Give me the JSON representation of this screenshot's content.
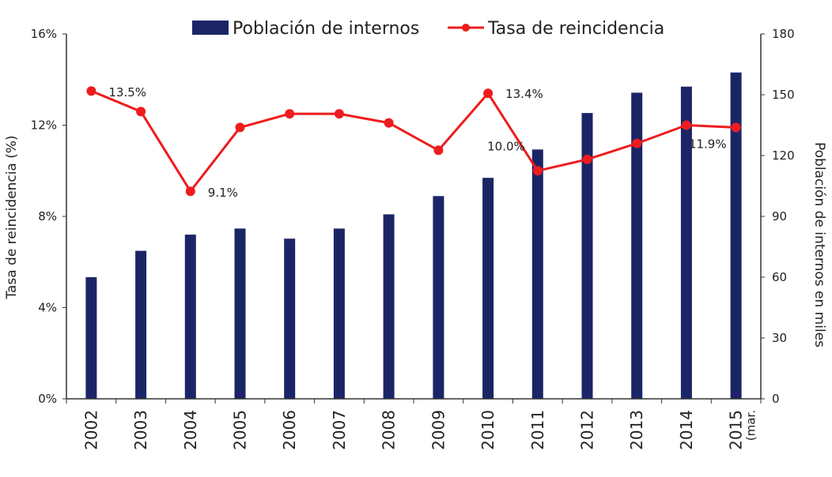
{
  "chart_data": {
    "type": "bar",
    "categories": [
      "2002",
      "2003",
      "2004",
      "2005",
      "2006",
      "2007",
      "2008",
      "2009",
      "2010",
      "2011",
      "2012",
      "2013",
      "2014",
      "2015"
    ],
    "category_sublabels": {
      "2015": "(mar."
    },
    "series": [
      {
        "name": "Población de internos",
        "kind": "bar",
        "axis": "right",
        "values": [
          60,
          73,
          81,
          84,
          79,
          84,
          91,
          100,
          109,
          123,
          141,
          151,
          154,
          161
        ]
      },
      {
        "name": "Tasa de reincidencia",
        "kind": "line",
        "axis": "left",
        "values": [
          13.5,
          12.6,
          9.1,
          11.9,
          12.5,
          12.5,
          12.1,
          10.9,
          13.4,
          10.0,
          10.5,
          11.2,
          12.0,
          11.9
        ]
      }
    ],
    "data_labels": [
      {
        "series": "Tasa de reincidencia",
        "category": "2002",
        "text": "13.5%"
      },
      {
        "series": "Tasa de reincidencia",
        "category": "2004",
        "text": "9.1%"
      },
      {
        "series": "Tasa de reincidencia",
        "category": "2010",
        "text": "13.4%"
      },
      {
        "series": "Tasa de reincidencia",
        "category": "2011",
        "text": "10.0%"
      },
      {
        "series": "Tasa de reincidencia",
        "category": "2015",
        "text": "11.9%"
      }
    ],
    "y_left": {
      "label": "Tasa de reincidencia (%)",
      "ylim": [
        0,
        16
      ],
      "ticks": [
        0,
        4,
        8,
        12,
        16
      ],
      "tick_labels": [
        "0%",
        "4%",
        "8%",
        "12%",
        "16%"
      ]
    },
    "y_right": {
      "label": "Población de internos en miles",
      "ylim": [
        0,
        180
      ],
      "ticks": [
        0,
        30,
        60,
        90,
        120,
        150,
        180
      ],
      "tick_labels": [
        "0",
        "30",
        "60",
        "90",
        "120",
        "150",
        "180"
      ]
    },
    "xlabel": "",
    "grid": false,
    "legend_position": "top",
    "colors": {
      "bar": "#1b2566",
      "line": "#ee1c1c",
      "axis": "#333333"
    }
  }
}
